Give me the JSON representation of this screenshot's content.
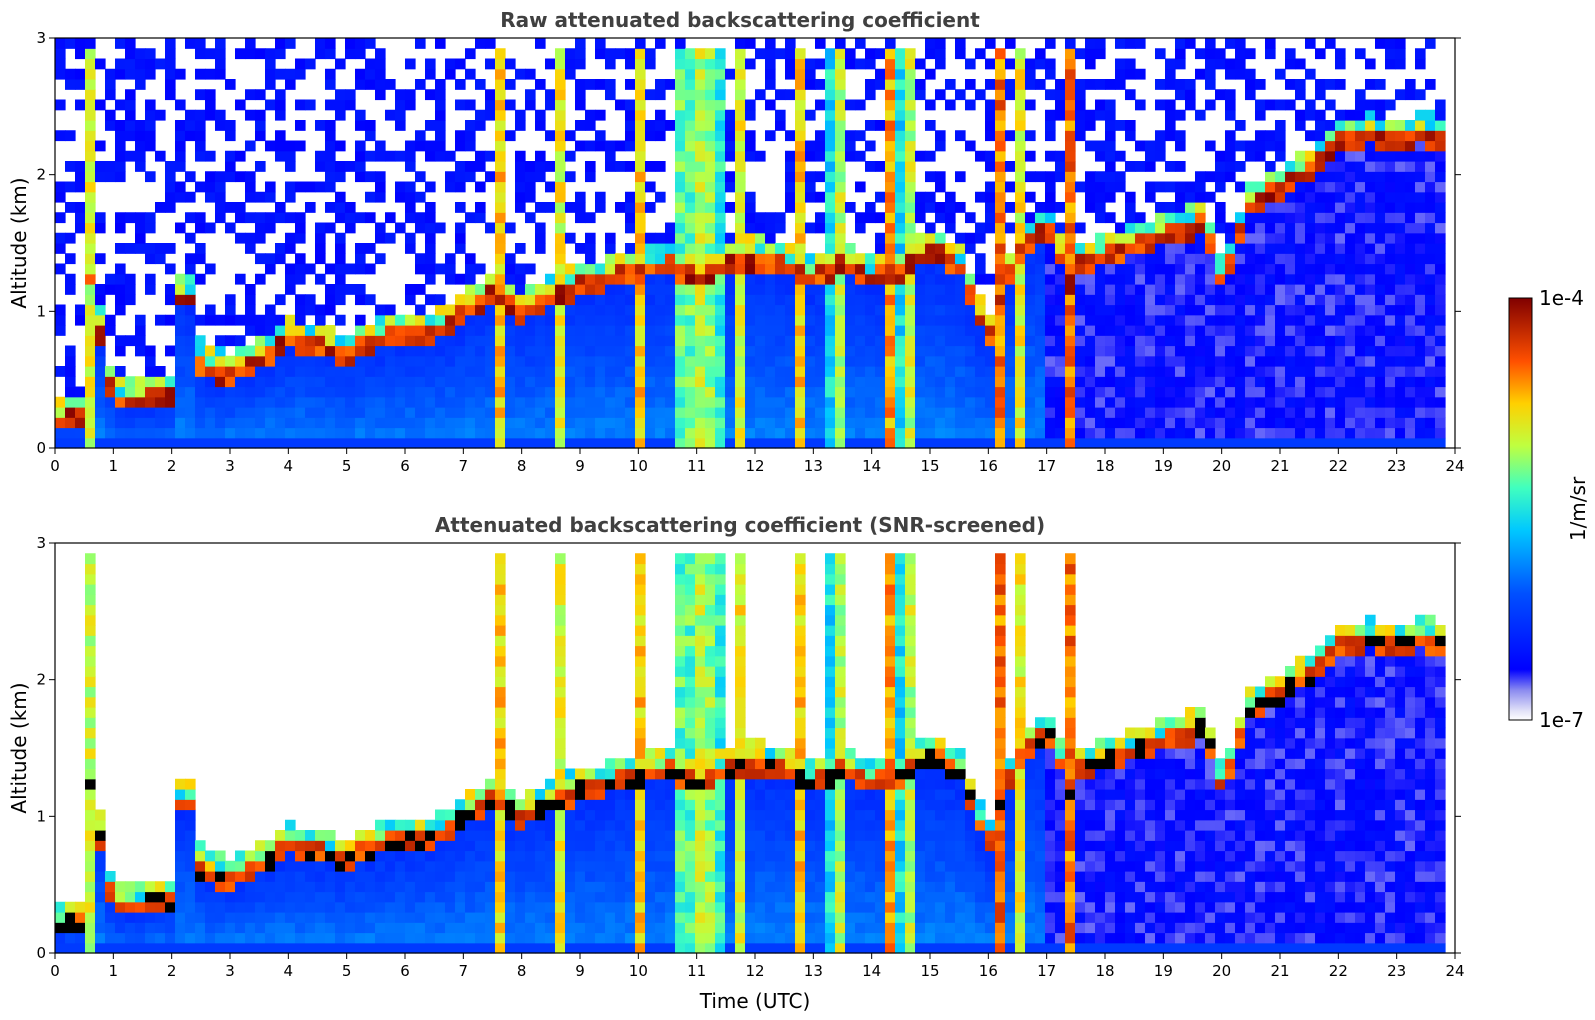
{
  "chart_data": [
    {
      "type": "heatmap",
      "title": "Raw attenuated backscattering coefficient",
      "xlabel": "",
      "ylabel": "Altitude (km)",
      "xlim": [
        0,
        24
      ],
      "ylim": [
        0,
        3
      ],
      "x_ticks": [
        "0",
        "1",
        "2",
        "3",
        "4",
        "5",
        "6",
        "7",
        "8",
        "9",
        "10",
        "11",
        "12",
        "13",
        "14",
        "15",
        "16",
        "17",
        "18",
        "19",
        "20",
        "21",
        "22",
        "23",
        "24"
      ],
      "y_ticks": [
        "0",
        "1",
        "2",
        "3"
      ],
      "screened": false
    },
    {
      "type": "heatmap",
      "title": "Attenuated backscattering coefficient (SNR-screened)",
      "xlabel": "Time (UTC)",
      "ylabel": "Altitude (km)",
      "xlim": [
        0,
        24
      ],
      "ylim": [
        0,
        3
      ],
      "x_ticks": [
        "0",
        "1",
        "2",
        "3",
        "4",
        "5",
        "6",
        "7",
        "8",
        "9",
        "10",
        "11",
        "12",
        "13",
        "14",
        "15",
        "16",
        "17",
        "18",
        "19",
        "20",
        "21",
        "22",
        "23",
        "24"
      ],
      "y_ticks": [
        "0",
        "1",
        "2",
        "3"
      ],
      "screened": true
    }
  ],
  "colorbar": {
    "max_label": "1e-4",
    "min_label": "1e-7",
    "unit": "1/m/sr",
    "colormap": "jet",
    "scale": "log"
  },
  "cloud_base_km": {
    "time_utc": [
      0.0,
      0.5,
      0.6,
      1.0,
      1.5,
      2.0,
      2.1,
      2.3,
      2.5,
      3.0,
      3.5,
      4.0,
      4.5,
      5.0,
      5.5,
      6.0,
      6.5,
      7.0,
      7.5,
      8.0,
      8.5,
      9.0,
      9.5,
      10.0,
      10.5,
      11.0,
      11.5,
      12.0,
      12.5,
      13.0,
      13.5,
      14.0,
      14.5,
      15.0,
      15.5,
      16.0,
      16.5,
      17.0,
      17.4,
      17.5,
      19.7,
      20.0,
      20.5,
      21.0,
      21.5,
      22.0,
      22.5,
      23.0,
      23.5,
      23.8
    ],
    "altitude_km": [
      0.15,
      0.2,
      1.2,
      0.3,
      0.3,
      0.35,
      1.05,
      1.1,
      0.55,
      0.5,
      0.6,
      0.75,
      0.7,
      0.65,
      0.75,
      0.8,
      0.8,
      0.95,
      1.1,
      0.95,
      1.05,
      1.15,
      1.2,
      1.25,
      1.3,
      1.2,
      1.3,
      1.35,
      1.3,
      1.2,
      1.3,
      1.2,
      1.25,
      1.4,
      1.3,
      0.75,
      1.4,
      1.6,
      1.15,
      1.3,
      1.6,
      1.15,
      1.75,
      1.85,
      2.0,
      2.2,
      2.25,
      2.22,
      2.25,
      2.2
    ]
  }
}
